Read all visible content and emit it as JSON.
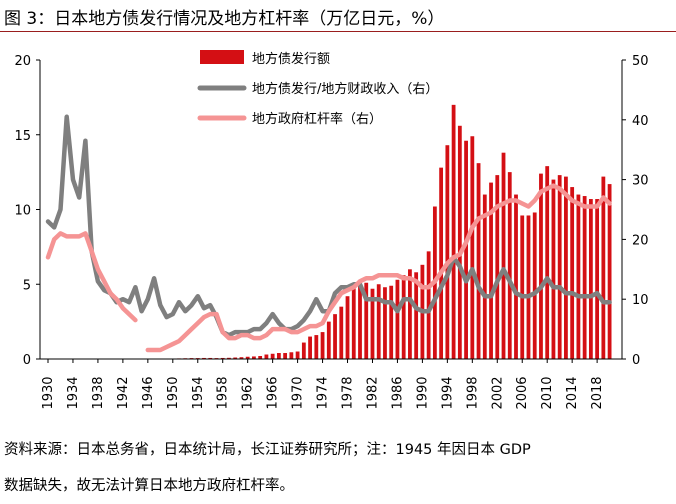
{
  "title": "图 3：日本地方债发行情况及地方杠杆率（万亿日元，%）",
  "source_line1": "资料来源：日本总务省，日本统计局，长江证券研究所；注：1945 年因日本 GDP",
  "source_line2": "数据缺失，故无法计算日本地方政府杠杆率。",
  "colors": {
    "issuance": "#d40f14",
    "fiscal_ratio": "#7f7f7f",
    "leverage": "#f59494"
  },
  "chart_data": {
    "type": "bar+line",
    "title": "日本地方债发行情况及地方杠杆率（万亿日元，%）",
    "x_tick_labels": [
      "1930",
      "1934",
      "1938",
      "1942",
      "1946",
      "1950",
      "1954",
      "1958",
      "1962",
      "1966",
      "1970",
      "1974",
      "1978",
      "1982",
      "1986",
      "1990",
      "1994",
      "1998",
      "2002",
      "2006",
      "2010",
      "2014",
      "2018"
    ],
    "y_left": {
      "min": 0,
      "max": 20,
      "ticks": [
        "0",
        "5",
        "10",
        "15",
        "20"
      ]
    },
    "y_right": {
      "min": 0,
      "max": 50,
      "ticks": [
        "0",
        "10",
        "20",
        "30",
        "40",
        "50"
      ]
    },
    "legend": [
      "地方债发行额",
      "地方债发行/地方财政收入（右）",
      "地方政府杠杆率（右）"
    ],
    "series": [
      {
        "name": "地方债发行额",
        "axis": "left",
        "type": "bar",
        "x": [
          1946,
          1947,
          1948,
          1949,
          1950,
          1951,
          1952,
          1953,
          1954,
          1955,
          1956,
          1957,
          1958,
          1959,
          1960,
          1961,
          1962,
          1963,
          1964,
          1965,
          1966,
          1967,
          1968,
          1969,
          1970,
          1971,
          1972,
          1973,
          1974,
          1975,
          1976,
          1977,
          1978,
          1979,
          1980,
          1981,
          1982,
          1983,
          1984,
          1985,
          1986,
          1987,
          1988,
          1989,
          1990,
          1991,
          1992,
          1993,
          1994,
          1995,
          1996,
          1997,
          1998,
          1999,
          2000,
          2001,
          2002,
          2003,
          2004,
          2005,
          2006,
          2007,
          2008,
          2009,
          2010,
          2011,
          2012,
          2013,
          2014,
          2015,
          2016,
          2017,
          2018,
          2019,
          2020
        ],
        "values": [
          0.02,
          0.02,
          0.03,
          0.03,
          0.03,
          0.04,
          0.05,
          0.06,
          0.06,
          0.07,
          0.07,
          0.06,
          0.07,
          0.08,
          0.1,
          0.12,
          0.15,
          0.17,
          0.2,
          0.3,
          0.35,
          0.4,
          0.4,
          0.45,
          0.5,
          1.1,
          1.5,
          1.6,
          1.8,
          2.5,
          3.0,
          3.5,
          4.2,
          4.8,
          4.9,
          5.1,
          4.7,
          5.0,
          4.8,
          4.9,
          5.3,
          5.6,
          6.0,
          5.8,
          6.3,
          7.2,
          10.2,
          12.8,
          14.3,
          17.0,
          15.6,
          14.6,
          14.9,
          13.1,
          11.0,
          11.8,
          12.3,
          13.8,
          12.5,
          11.0,
          9.6,
          9.6,
          9.8,
          12.4,
          12.9,
          12.0,
          12.3,
          12.2,
          11.5,
          11.0,
          10.9,
          10.7,
          10.7,
          12.2,
          11.7
        ]
      },
      {
        "name": "地方债发行/地方财政收入（右）",
        "axis": "right",
        "type": "line",
        "segments": [
          {
            "x": [
              1930,
              1931,
              1932,
              1933,
              1934,
              1935,
              1936,
              1937,
              1938,
              1939,
              1940,
              1941,
              1942,
              1943,
              1944,
              1945,
              1946,
              1947,
              1948,
              1949,
              1950,
              1951,
              1952,
              1953,
              1954,
              1955,
              1956,
              1957,
              1958,
              1959,
              1960,
              1961,
              1962,
              1963,
              1964,
              1965,
              1966,
              1967,
              1968,
              1969,
              1970,
              1971,
              1972,
              1973,
              1974,
              1975,
              1976,
              1977,
              1978,
              1979,
              1980,
              1981,
              1982,
              1983,
              1984,
              1985,
              1986,
              1987,
              1988,
              1989,
              1990,
              1991,
              1992,
              1993,
              1994,
              1995,
              1996,
              1997,
              1998,
              1999,
              2000,
              2001,
              2002,
              2003,
              2004,
              2005,
              2006,
              2007,
              2008,
              2009,
              2010,
              2011,
              2012,
              2013,
              2014,
              2015,
              2016,
              2017,
              2018,
              2019,
              2020
            ],
            "values": [
              23,
              22,
              25,
              40.5,
              30,
              27,
              36.5,
              18,
              13,
              11.5,
              11,
              9.5,
              10,
              9.5,
              12,
              8,
              10,
              13.5,
              9,
              7,
              7.5,
              9.5,
              8,
              9,
              10.5,
              8.5,
              9,
              7,
              4.5,
              4,
              4.5,
              4.5,
              4.5,
              5,
              5,
              6,
              7.5,
              6,
              5,
              5,
              5.5,
              6.5,
              8,
              10,
              8,
              8,
              11,
              12,
              12,
              12.5,
              12.5,
              10,
              10,
              10,
              9.5,
              9.5,
              8,
              10,
              10,
              8.5,
              8,
              8,
              10,
              12,
              14,
              17,
              15.5,
              13,
              15,
              12,
              10.5,
              10.5,
              13,
              15,
              13,
              11,
              10.5,
              10.5,
              11,
              12,
              13.5,
              12,
              12,
              11,
              11,
              10.5,
              10.5,
              10.5,
              11,
              9.5,
              9.5
            ]
          }
        ]
      },
      {
        "name": "地方政府杠杆率（右）",
        "axis": "right",
        "type": "line",
        "segments": [
          {
            "x": [
              1930,
              1931,
              1932,
              1933,
              1934,
              1935,
              1936,
              1937,
              1938,
              1939,
              1940,
              1941,
              1942,
              1943,
              1944
            ],
            "values": [
              17,
              20,
              21,
              20.5,
              20.5,
              20.5,
              21,
              18,
              15,
              13,
              11,
              10,
              8.5,
              7.5,
              6.5
            ]
          },
          {
            "x": [
              1946,
              1947,
              1948,
              1949,
              1950,
              1951,
              1952,
              1953,
              1954,
              1955,
              1956,
              1957,
              1958,
              1959,
              1960,
              1961,
              1962,
              1963,
              1964,
              1965,
              1966,
              1967,
              1968,
              1969,
              1970,
              1971,
              1972,
              1973,
              1974,
              1975,
              1976,
              1977,
              1978,
              1979,
              1980,
              1981,
              1982,
              1983,
              1984,
              1985,
              1986,
              1987,
              1988,
              1989,
              1990,
              1991,
              1992,
              1993,
              1994,
              1995,
              1996,
              1997,
              1998,
              1999,
              2000,
              2001,
              2002,
              2003,
              2004,
              2005,
              2006,
              2007,
              2008,
              2009,
              2010,
              2011,
              2012,
              2013,
              2014,
              2015,
              2016,
              2017,
              2018,
              2019,
              2020
            ],
            "values": [
              1.5,
              1.5,
              1.5,
              2,
              2.5,
              3,
              4,
              5,
              6,
              7,
              7.5,
              7.5,
              4.5,
              3.5,
              3.5,
              4,
              4,
              3.5,
              3.5,
              4,
              5,
              5,
              5,
              4.5,
              4.5,
              5,
              5.5,
              5.5,
              6,
              8,
              9.5,
              11,
              11.5,
              12,
              13,
              13.5,
              13.5,
              14,
              14,
              14,
              14,
              13.5,
              13.5,
              13,
              12,
              12,
              13,
              14.5,
              16,
              17,
              17.5,
              19.5,
              22,
              23.5,
              24,
              24.5,
              25.5,
              26,
              26.5,
              26.5,
              26,
              25.5,
              26.5,
              28,
              28.5,
              29,
              28.5,
              27.5,
              26.5,
              26,
              25.5,
              25.5,
              25.5,
              27,
              26
            ]
          }
        ]
      }
    ]
  }
}
